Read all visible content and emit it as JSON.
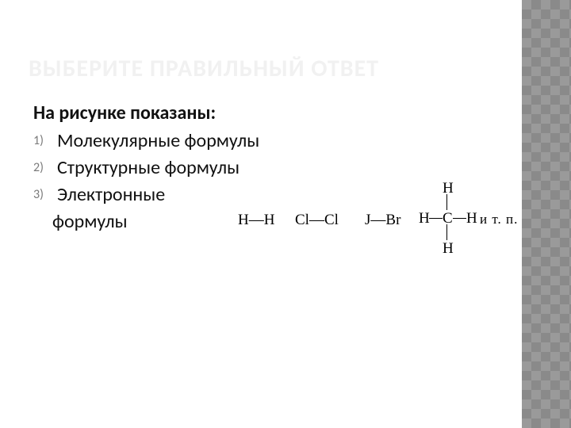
{
  "title": "ВЫБЕРИТЕ ПРАВИЛЬНЫЙ ОТВЕТ",
  "question": "На рисунке показаны:",
  "options": [
    "Молекулярные формулы",
    "Структурные формулы",
    "Электронные"
  ],
  "option3_line2": "формулы",
  "chem": {
    "hh": "H—H",
    "clcl": "Cl—Cl",
    "jbr": "J—Br",
    "etc": "и т. п.",
    "ch4": {
      "c": "C",
      "h": "H"
    }
  },
  "style": {
    "title_color": "#f1f1f1",
    "text_color": "#111111",
    "list_marker_color": "#7a7a7a",
    "deco_bg": "#9a9a9a",
    "deco_pattern": "#8a8a8a",
    "title_fontsize": 30,
    "body_fontsize": 24,
    "chem_fontsize": 19,
    "slide_w": 720,
    "slide_h": 540
  }
}
